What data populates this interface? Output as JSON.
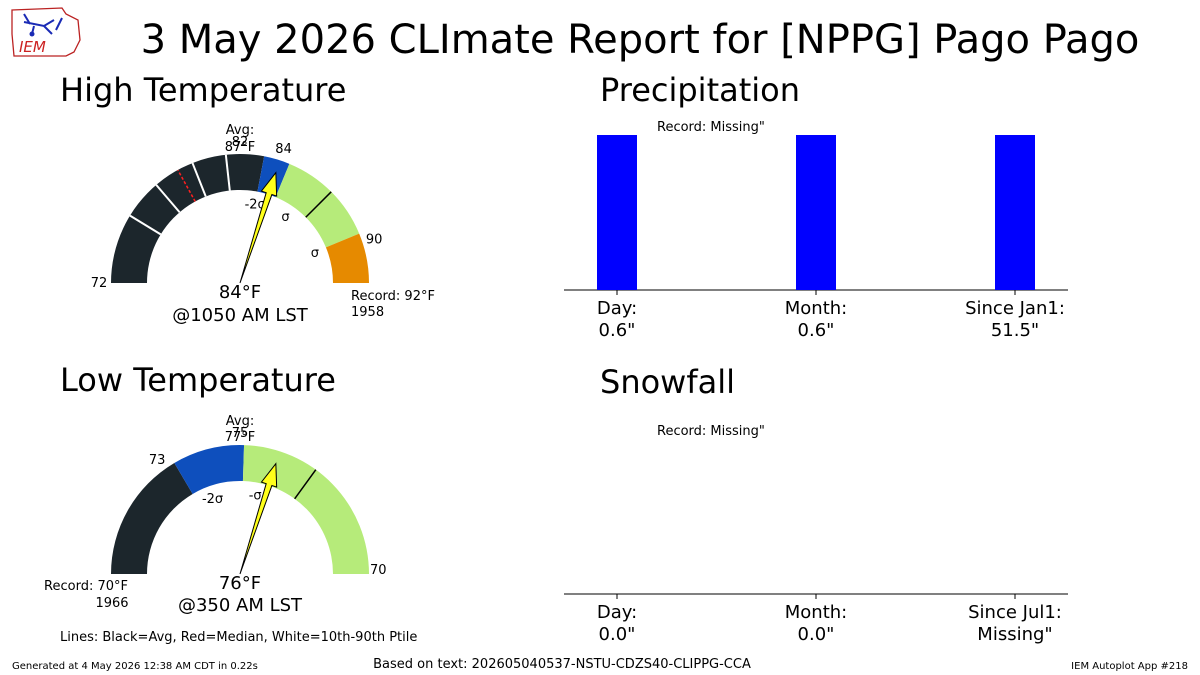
{
  "page": {
    "title": "3 May 2026 CLImate Report for [NPPG] Pago Pago",
    "logo_text": "IEM",
    "footer_left": "Generated at 4 May 2026 12:38 AM CDT in 0.22s",
    "footer_center": "Based on text: 202605040537-NSTU-CDZS40-CLIPPG-CCA",
    "footer_right": "IEM Autoplot App #218",
    "lines_note": "Lines: Black=Avg, Red=Median, White=10th-90th Ptile",
    "colors": {
      "below_2sigma": "#1c262c",
      "minus_sigma": "#0e4fbd",
      "normal": "#b6eb7a",
      "plus_sigma": "#e68a00",
      "bar": "#0000ff",
      "needle": "#ffff1a"
    }
  },
  "chart_data": [
    {
      "type": "gauge",
      "title": "High Temperature",
      "min": 72,
      "max": 92,
      "value": 84,
      "value_label": "84°F",
      "time_label": "@1050 AM LST",
      "avg_label": "Avg:",
      "avg_value_label": "87°F",
      "avg": 87,
      "record_label": "Record: 92°F",
      "record_year": "1958",
      "bands": [
        {
          "from": 72,
          "to": 83.2,
          "color_key": "below_2sigma"
        },
        {
          "from": 83.2,
          "to": 84.5,
          "color_key": "minus_sigma"
        },
        {
          "from": 84.5,
          "to": 89.5,
          "color_key": "normal"
        },
        {
          "from": 89.5,
          "to": 92,
          "color_key": "plus_sigma"
        }
      ],
      "tick_labels": [
        {
          "value": 72,
          "text": "72"
        },
        {
          "value": 82,
          "text": "82"
        },
        {
          "value": 84,
          "text": "84"
        },
        {
          "value": 90,
          "text": "90"
        }
      ],
      "sigma_labels": [
        {
          "value": 83.2,
          "text": "-2σ"
        },
        {
          "value": 85.8,
          "text": "σ"
        },
        {
          "value": 89.5,
          "text": "σ"
        }
      ],
      "white_lines": [
        75.5,
        77.5,
        79.6,
        81.3
      ],
      "red_line": 78.8
    },
    {
      "type": "gauge",
      "title": "Low Temperature",
      "min": 70,
      "max": 80,
      "value": 76,
      "value_label": "76°F",
      "time_label": "@350 AM LST",
      "avg_label": "Avg:",
      "avg_value_label": "77°F",
      "avg": 77,
      "record_label": "Record: 70°F",
      "record_year": "1966",
      "max_label": "70",
      "bands": [
        {
          "from": 70,
          "to": 73.3,
          "color_key": "below_2sigma"
        },
        {
          "from": 73.3,
          "to": 75.1,
          "color_key": "minus_sigma"
        },
        {
          "from": 75.1,
          "to": 80,
          "color_key": "normal"
        }
      ],
      "tick_labels": [
        {
          "value": 73,
          "text": "73"
        },
        {
          "value": 75,
          "text": "75"
        }
      ],
      "sigma_labels": [
        {
          "value": 73.9,
          "text": "-2σ"
        },
        {
          "value": 75.6,
          "text": "-σ"
        }
      ]
    },
    {
      "type": "bar",
      "title": "Precipitation",
      "record_text": "Record: Missing\"",
      "categories": [
        "Day:",
        "Month:",
        "Since Jan1:"
      ],
      "value_labels": [
        "0.6\"",
        "0.6\"",
        "51.5\""
      ],
      "values": [
        1,
        1,
        1
      ],
      "ylim": [
        0,
        1
      ]
    },
    {
      "type": "bar",
      "title": "Snowfall",
      "record_text": "Record: Missing\"",
      "categories": [
        "Day:",
        "Month:",
        "Since Jul1:"
      ],
      "value_labels": [
        "0.0\"",
        "0.0\"",
        "Missing\""
      ],
      "values": [
        0,
        0,
        0
      ],
      "ylim": [
        0,
        1
      ]
    }
  ]
}
